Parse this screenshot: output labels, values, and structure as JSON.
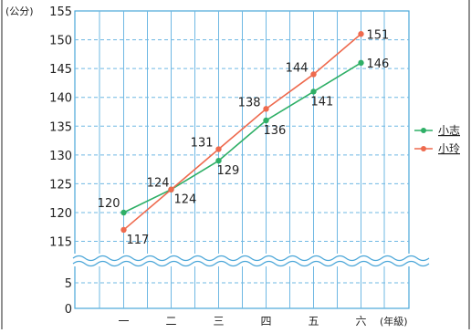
{
  "chart_data": {
    "type": "line",
    "categories": [
      "一",
      "二",
      "三",
      "四",
      "五",
      "六"
    ],
    "xlabel": "(年級)",
    "ylabel": "(公分)",
    "ylim": [
      0,
      155
    ],
    "y_axis_break": [
      10,
      112
    ],
    "y_ticks": [
      0,
      5,
      115,
      120,
      125,
      130,
      135,
      140,
      145,
      150,
      155
    ],
    "grid": true,
    "legend_position": "right",
    "series": [
      {
        "name": "小志",
        "color": "#2eaf66",
        "values": [
          120,
          124,
          129,
          136,
          141,
          146
        ]
      },
      {
        "name": "小玲",
        "color": "#ee6a4e",
        "values": [
          117,
          124,
          131,
          138,
          144,
          151
        ]
      }
    ]
  }
}
